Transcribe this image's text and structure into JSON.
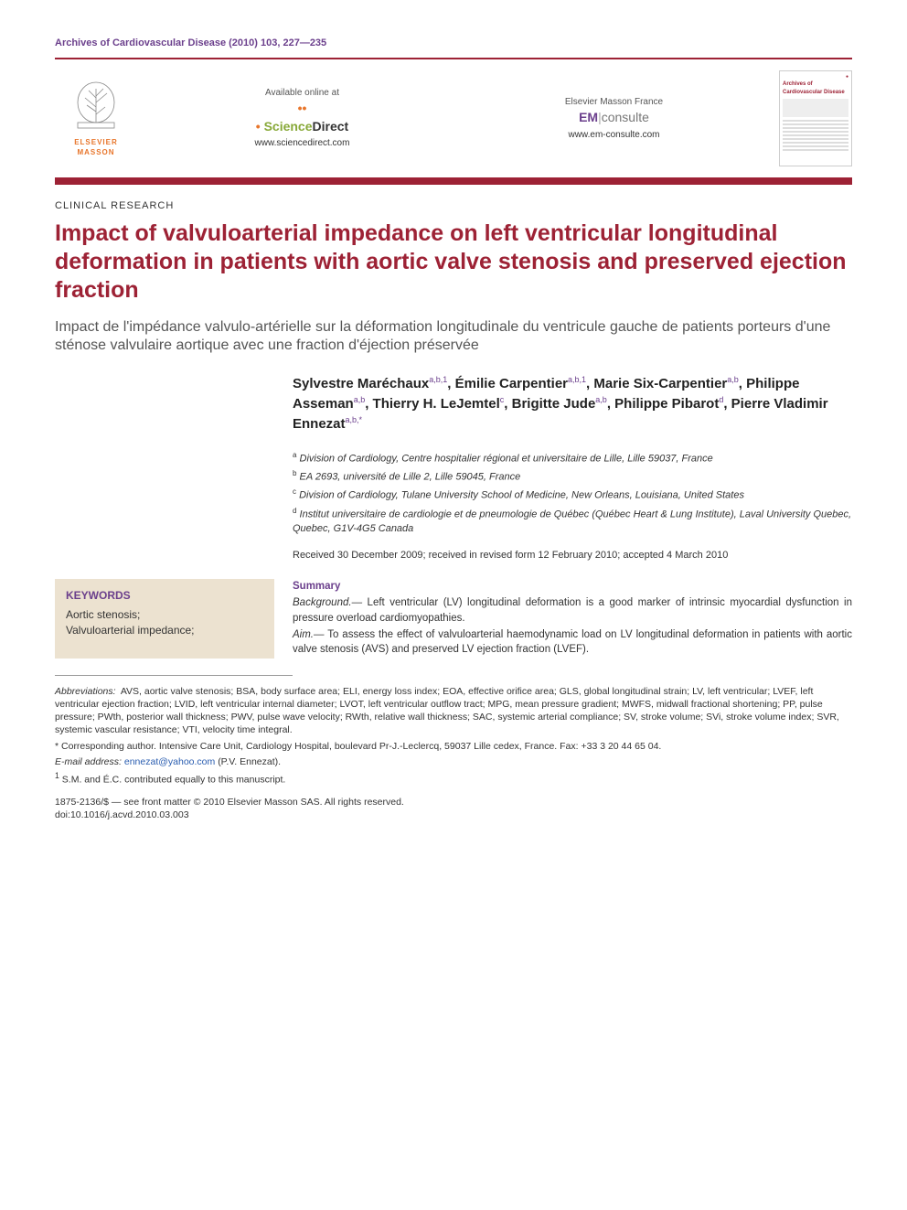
{
  "journal_ref": "Archives of Cardiovascular Disease (2010) 103, 227—235",
  "header": {
    "publisher": "ELSEVIER MASSON",
    "left_box": {
      "label": "Available online at",
      "brand_pre": "Science",
      "brand_post": "Direct",
      "url": "www.sciencedirect.com"
    },
    "right_box": {
      "label": "Elsevier Masson France",
      "brand_em": "EM",
      "brand_consulte": "consulte",
      "url": "www.em-consulte.com"
    },
    "cover": {
      "journal": "Archives of Cardiovascular Disease"
    }
  },
  "article_type": "CLINICAL RESEARCH",
  "title_en": "Impact of valvuloarterial impedance on left ventricular longitudinal deformation in patients with aortic valve stenosis and preserved ejection fraction",
  "title_fr": "Impact de l'impédance valvulo-artérielle sur la déformation longitudinale du ventricule gauche de patients porteurs d'une sténose valvulaire aortique avec une fraction d'éjection préservée",
  "authors_html": "Sylvestre Maréchaux<sup>a,b,1</sup>, Émilie Carpentier<sup>a,b,1</sup>, Marie Six-Carpentier<sup>a,b</sup>, Philippe Asseman<sup>a,b</sup>, Thierry H. LeJemtel<sup>c</sup>, Brigitte Jude<sup>a,b</sup>, Philippe Pibarot<sup>d</sup>, Pierre Vladimir Ennezat<sup>a,b,*</sup>",
  "affiliations": {
    "a": "Division of Cardiology, Centre hospitalier régional et universitaire de Lille, Lille 59037, France",
    "b": "EA 2693, université de Lille 2, Lille 59045, France",
    "c": "Division of Cardiology, Tulane University School of Medicine, New Orleans, Louisiana, United States",
    "d": "Institut universitaire de cardiologie et de pneumologie de Québec (Québec Heart & Lung Institute), Laval University Quebec, Quebec, G1V-4G5 Canada"
  },
  "dates": "Received 30 December 2009; received in revised form 12 February 2010; accepted 4 March 2010",
  "keywords": {
    "head": "KEYWORDS",
    "items": "Aortic stenosis;\nValvuloarterial impedance;"
  },
  "summary": {
    "head": "Summary",
    "background": "Left ventricular (LV) longitudinal deformation is a good marker of intrinsic myocardial dysfunction in pressure overload cardiomyopathies.",
    "aim": "To assess the effect of valvuloarterial haemodynamic load on LV longitudinal deformation in patients with aortic valve stenosis (AVS) and preserved LV ejection fraction (LVEF)."
  },
  "footnotes": {
    "abbrev": "AVS, aortic valve stenosis; BSA, body surface area; ELI, energy loss index; EOA, effective orifice area; GLS, global longitudinal strain; LV, left ventricular; LVEF, left ventricular ejection fraction; LVID, left ventricular internal diameter; LVOT, left ventricular outflow tract; MPG, mean pressure gradient; MWFS, midwall fractional shortening; PP, pulse pressure; PWth, posterior wall thickness; PWV, pulse wave velocity; RWth, relative wall thickness; SAC, systemic arterial compliance; SV, stroke volume; SVi, stroke volume index; SVR, systemic vascular resistance; VTI, velocity time integral.",
    "corresponding": "Corresponding author. Intensive Care Unit, Cardiology Hospital, boulevard Pr-J.-Leclercq, 59037 Lille cedex, France. Fax: +33 3 20 44 65 04.",
    "email_label": "E-mail address:",
    "email": "ennezat@yahoo.com",
    "email_person": "(P.V. Ennezat).",
    "note1": "S.M. and É.C. contributed equally to this manuscript.",
    "issn": "1875-2136/$ — see front matter © 2010 Elsevier Masson SAS. All rights reserved.",
    "doi_label": "doi:",
    "doi": "10.1016/j.acvd.2010.03.003"
  },
  "colors": {
    "brand_red": "#9d2235",
    "brand_purple": "#6b3f8c",
    "brand_orange": "#e8762c",
    "link_blue": "#2a5db0",
    "kw_bg": "#ece2d0"
  }
}
